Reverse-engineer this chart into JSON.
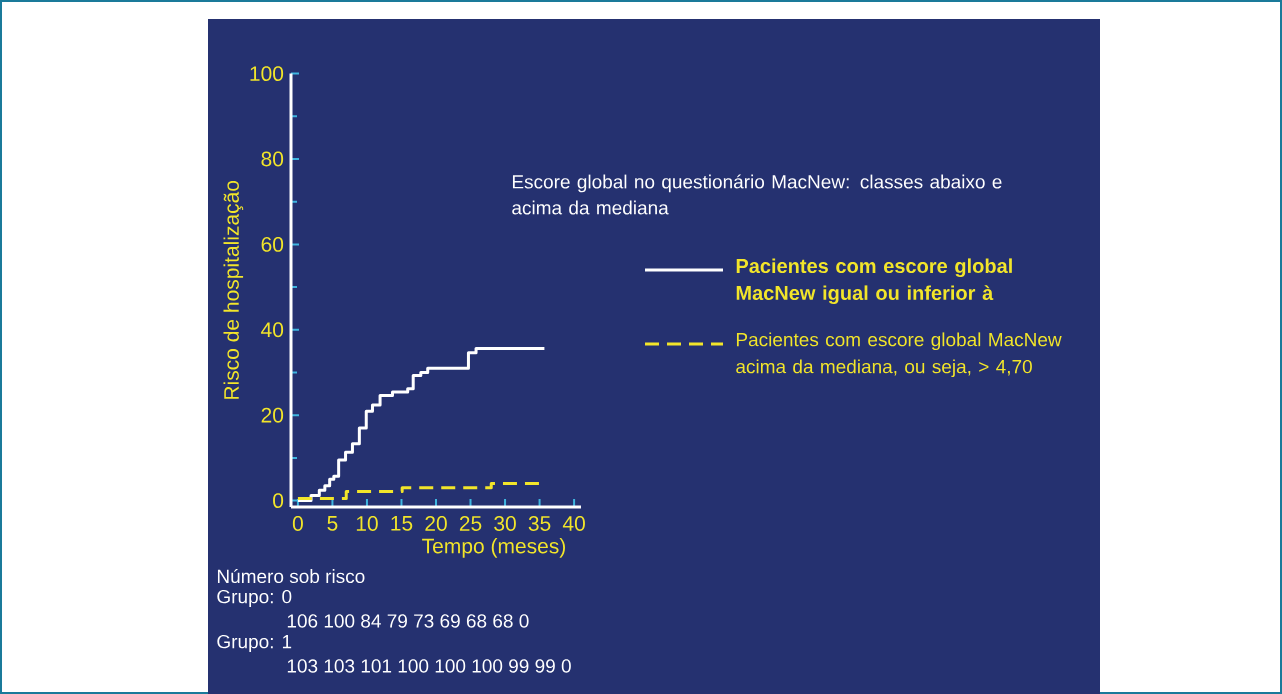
{
  "chart_data": {
    "type": "step",
    "title": "Escore global no questionário MacNew: classes abaixo e acima da mediana",
    "xlabel": "Tempo (meses)",
    "ylabel": "Risco de hospitalização",
    "xlim": [
      -1,
      41
    ],
    "ylim": [
      -1.5,
      100
    ],
    "xticks": [
      0,
      5,
      10,
      15,
      20,
      25,
      30,
      35,
      40
    ],
    "yticks": [
      0,
      20,
      40,
      60,
      80,
      100
    ],
    "grid": false,
    "legend": "right",
    "marker": "none",
    "series": [
      {
        "name": "Pacientes com escore global MacNew igual ou inferior à",
        "color": "#ffffff",
        "line_style": "solid",
        "x": [
          0,
          1.9,
          3.1,
          3.9,
          4.6,
          5.2,
          5.9,
          6.9,
          7.9,
          8.9,
          9.9,
          10.8,
          11.9,
          13.7,
          15.9,
          16.7,
          17.8,
          18.8,
          24.7,
          25.8,
          35.7
        ],
        "values": [
          0,
          1.2,
          2.4,
          3.5,
          5,
          5.7,
          9.5,
          11.3,
          13.3,
          17,
          20.9,
          22.4,
          24.6,
          25.4,
          26.2,
          29.3,
          30,
          31,
          34.6,
          35.6,
          35.6
        ]
      },
      {
        "name": "Pacientes com escore global MacNew acima da mediana, ou seja, > 4,70",
        "color": "#f2e52a",
        "line_style": "dashed",
        "x": [
          0,
          7,
          15.1,
          28,
          35.4
        ],
        "values": [
          0.5,
          2.1,
          3,
          4,
          4
        ]
      }
    ],
    "annotations": [
      "Número sob risco",
      "Grupo: 0",
      "106  100  84  79  73  69  68  68  0",
      "Grupo: 1",
      "103  103  101  100  100  100  99  99  0"
    ]
  }
}
